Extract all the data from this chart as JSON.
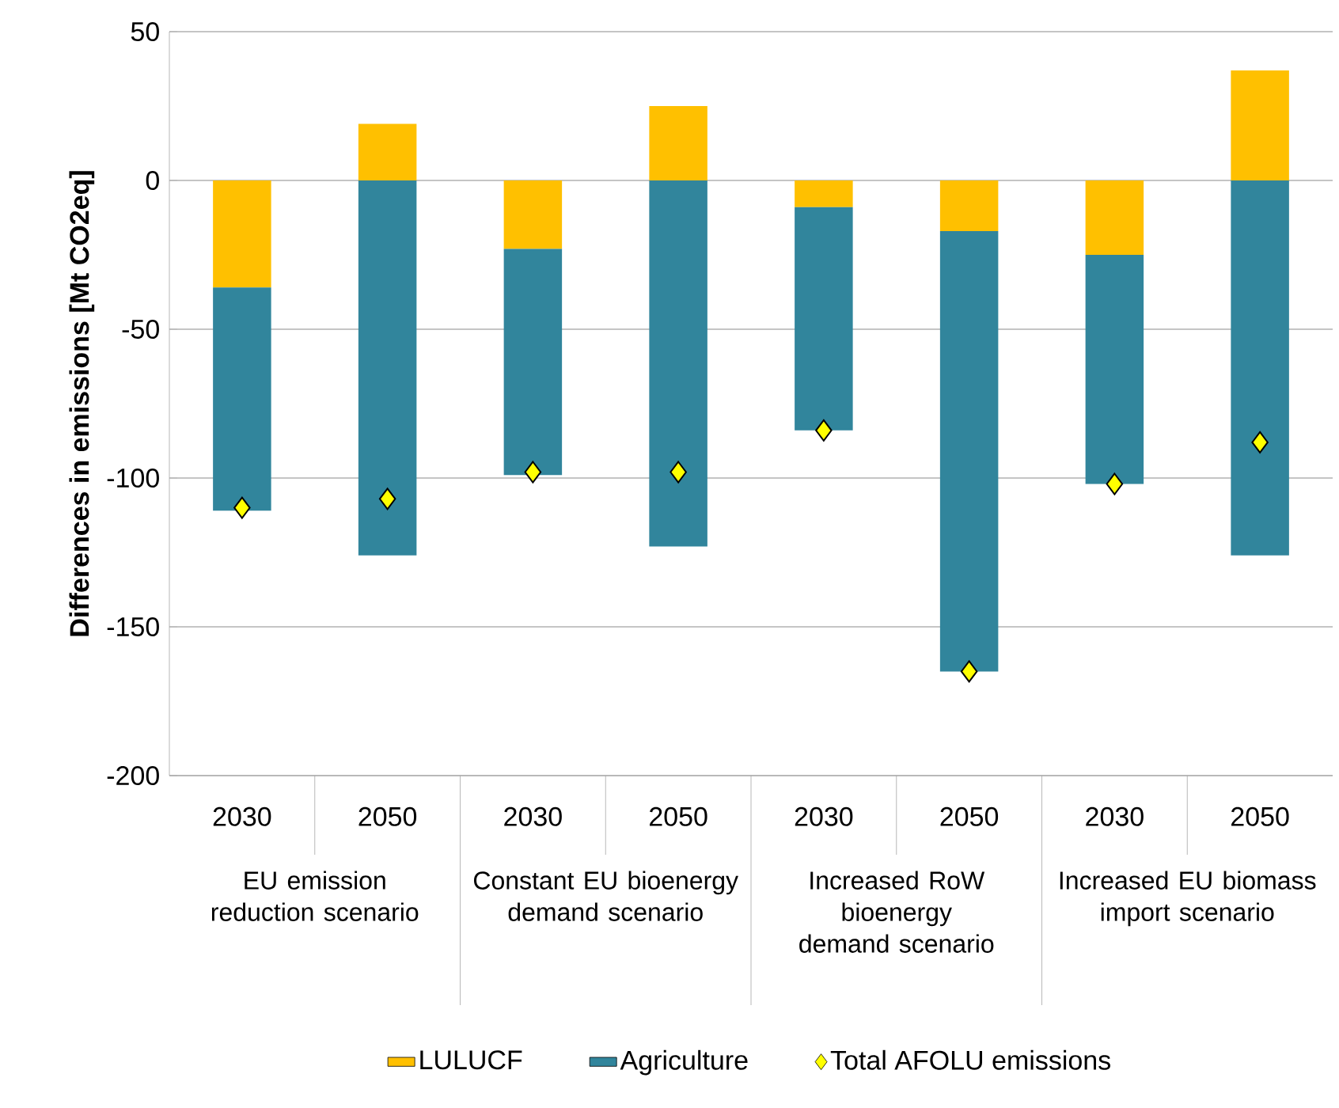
{
  "chart_data": {
    "type": "bar",
    "stacked": true,
    "ylabel": "Differences in emissions [Mt CO2eq]",
    "categories": [
      "2030",
      "2050",
      "2030",
      "2050",
      "2030",
      "2050",
      "2030",
      "2050"
    ],
    "series": [
      {
        "name": "LULUCF",
        "color": "#ffc000",
        "values": [
          -36,
          19,
          -23,
          25,
          -9,
          -17,
          -25,
          37
        ]
      },
      {
        "name": "Agriculture",
        "color": "#31859c",
        "values": [
          -75,
          -126,
          -76,
          -123,
          -75,
          -148,
          -77,
          -126
        ]
      },
      {
        "name": "Total AFOLU emissions",
        "type": "scatter",
        "color": "#ffff00",
        "marker": "diamond",
        "values": [
          -110,
          -107,
          -98,
          -98,
          -84,
          -165,
          -102,
          -88
        ]
      }
    ],
    "annotations": [
      "EU emission reduction scenario",
      "Constant EU bioenergy demand scenario",
      "Increased RoW bioenergy demand scenario",
      "Increased EU biomass import scenario"
    ],
    "ylim": [
      -200,
      50
    ],
    "yticks": [
      -200,
      -150,
      -100,
      -50,
      0,
      50
    ],
    "grid": "y",
    "legend": "bottom"
  }
}
